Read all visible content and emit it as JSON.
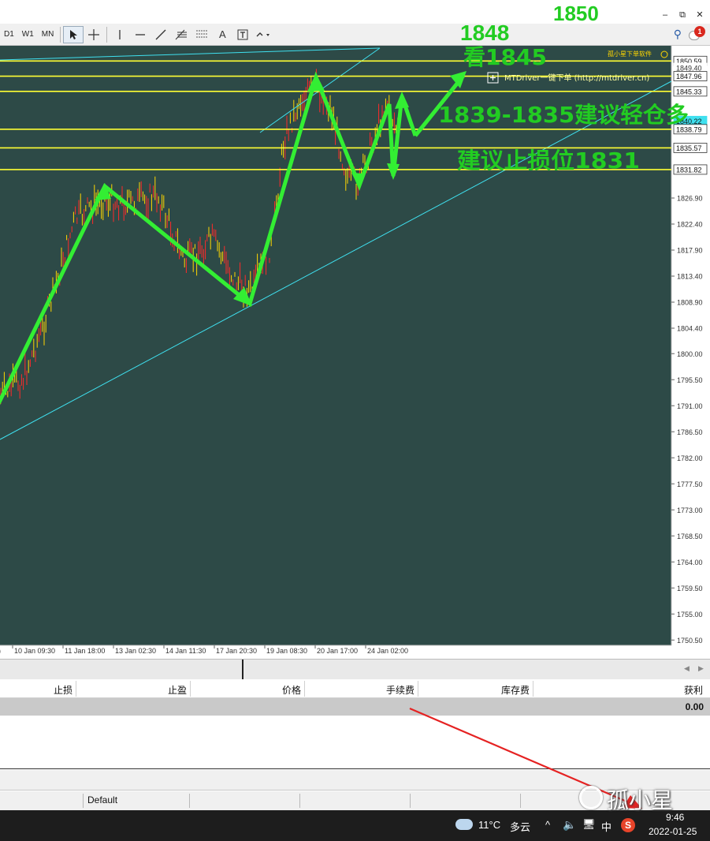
{
  "window": {
    "minimize_icon": "minimize-icon",
    "restore_icon": "restore-icon",
    "close_icon": "close-icon"
  },
  "toolbar": {
    "timeframes": [
      "D1",
      "W1",
      "MN"
    ],
    "tools": [
      "cursor-icon",
      "crosshair-icon",
      "vertical-line-icon",
      "horizontal-line-icon",
      "trendline-icon",
      "fibonacci-icon",
      "gann-grid-icon",
      "text-icon",
      "text-label-icon",
      "arrow-shapes-icon"
    ],
    "text_tool": "A",
    "notification_count": "1"
  },
  "chart": {
    "background": "#2d4a47",
    "grid_border": "#bfbfbf",
    "bull_color": "#ffd700",
    "bear_color": "#ff2a2a",
    "channel_color": "#3fe0ef",
    "level_color": "#ffff33",
    "arrow_color": "#33ee33",
    "ea_label": "孤小星下单软件",
    "plugin_text": "MTDriver一键下单 (http://mtdriver.cn)",
    "price_ticks": [
      "1826.90",
      "1822.40",
      "1817.90",
      "1813.40",
      "1808.90",
      "1804.40",
      "1800.00",
      "1795.50",
      "1791.00",
      "1786.50",
      "1782.00",
      "1777.50",
      "1773.00",
      "1768.50",
      "1764.00",
      "1759.50",
      "1755.00",
      "1750.50"
    ],
    "level_tags": [
      "1850.59",
      "1849.40",
      "1847.96",
      "1845.33",
      "1840.22",
      "1838.79",
      "1835.57",
      "1831.82"
    ],
    "time_ticks": [
      "10 Jan 09:30",
      "11 Jan 18:00",
      "13 Jan 02:30",
      "14 Jan 11:30",
      "17 Jan 20:30",
      "19 Jan 08:30",
      "20 Jan 17:00",
      "24 Jan 02:00"
    ]
  },
  "annotations": {
    "a1850": "1850",
    "a1848": "1848",
    "a1845": "看1845",
    "a_long": "1839-1835建议轻仓多",
    "a_stop": "建议止损位1831"
  },
  "terminal": {
    "columns": [
      "止损",
      "止盈",
      "价格",
      "手续费",
      "库存费",
      "获利"
    ],
    "profit_total": "0.00"
  },
  "statusbar": {
    "profile": "Default"
  },
  "taskbar": {
    "temperature": "11°C",
    "weather": "多云",
    "chevron": "^",
    "ime_lang": "中",
    "time": "9:46",
    "date": "2022-01-25"
  },
  "watermark": {
    "text": "孤小星"
  }
}
